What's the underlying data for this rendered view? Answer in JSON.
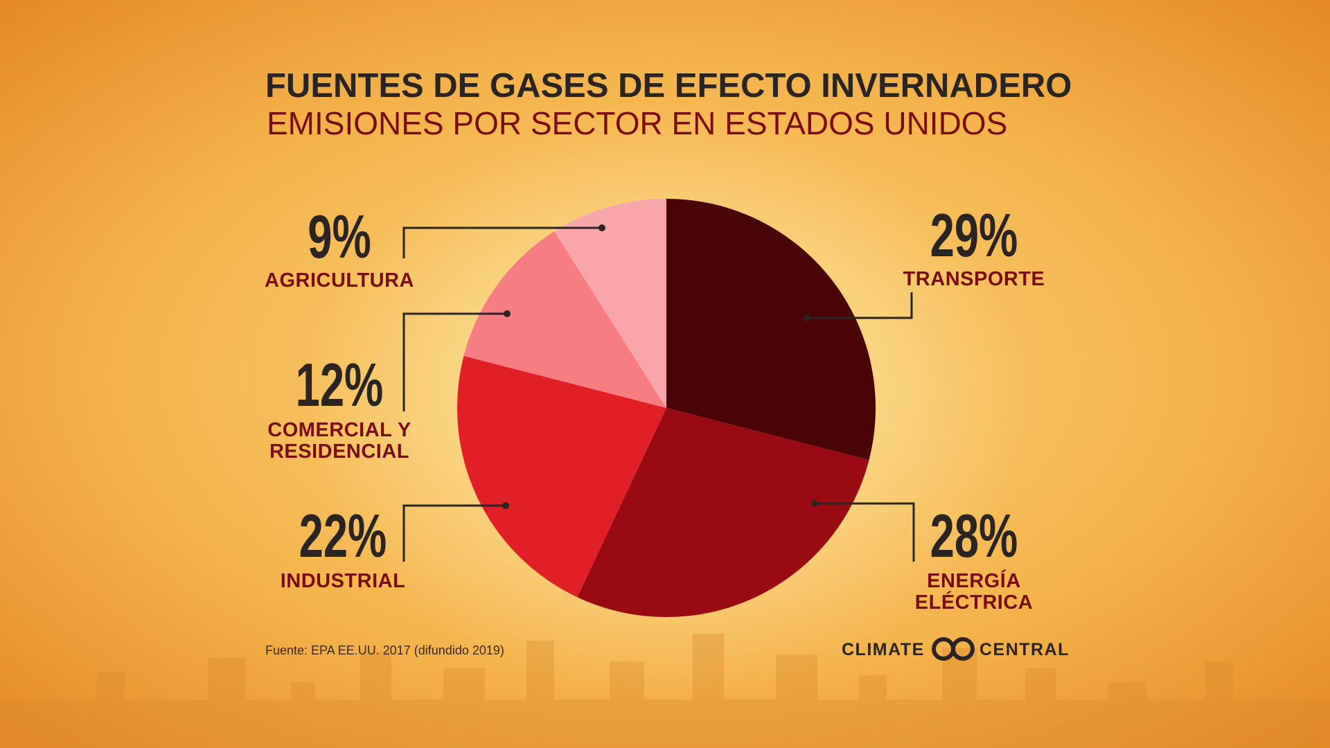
{
  "chart_data": {
    "type": "pie",
    "title": "FUENTES DE GASES DE EFECTO INVERNADERO",
    "subtitle": "EMISIONES POR SECTOR EN ESTADOS UNIDOS",
    "categories": [
      "TRANSPORTE",
      "ENERGÍA ELÉCTRICA",
      "INDUSTRIAL",
      "COMERCIAL Y RESIDENCIAL",
      "AGRICULTURA"
    ],
    "values": [
      29,
      28,
      22,
      12,
      9
    ],
    "value_labels": [
      "29%",
      "28%",
      "22%",
      "12%",
      "9%"
    ],
    "colors": [
      "#4a0307",
      "#9a0a12",
      "#e01f27",
      "#f77d82",
      "#f9a6aa"
    ],
    "source": "Fuente: EPA EE.UU. 2017 (difundido 2019)"
  },
  "logo": {
    "left": "CLIMATE",
    "right": "CENTRAL"
  }
}
